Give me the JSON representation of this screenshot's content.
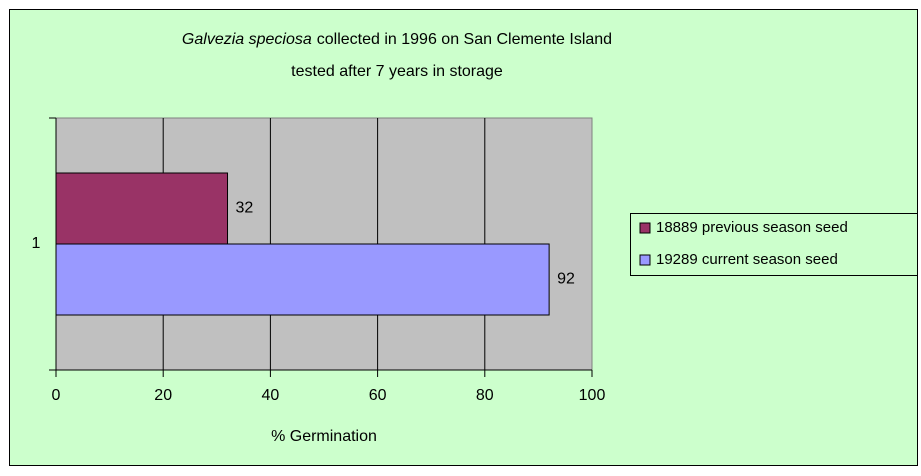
{
  "chart_data": {
    "type": "bar",
    "orientation": "horizontal",
    "title_italic": "Galvezia speciosa",
    "title": "collected in 1996 on San Clemente Island",
    "subtitle": "tested after 7 years in storage",
    "x_label": "% Germination",
    "categories": [
      "1"
    ],
    "series": [
      {
        "name": "18889 previous season seed",
        "color": "#993366",
        "values": [
          32
        ]
      },
      {
        "name": "19289 current season seed",
        "color": "#9999ff",
        "values": [
          92
        ]
      }
    ],
    "xlim": [
      0,
      100
    ],
    "xticks": [
      0,
      20,
      40,
      60,
      80,
      100
    ],
    "grid": true,
    "legend": "right"
  }
}
